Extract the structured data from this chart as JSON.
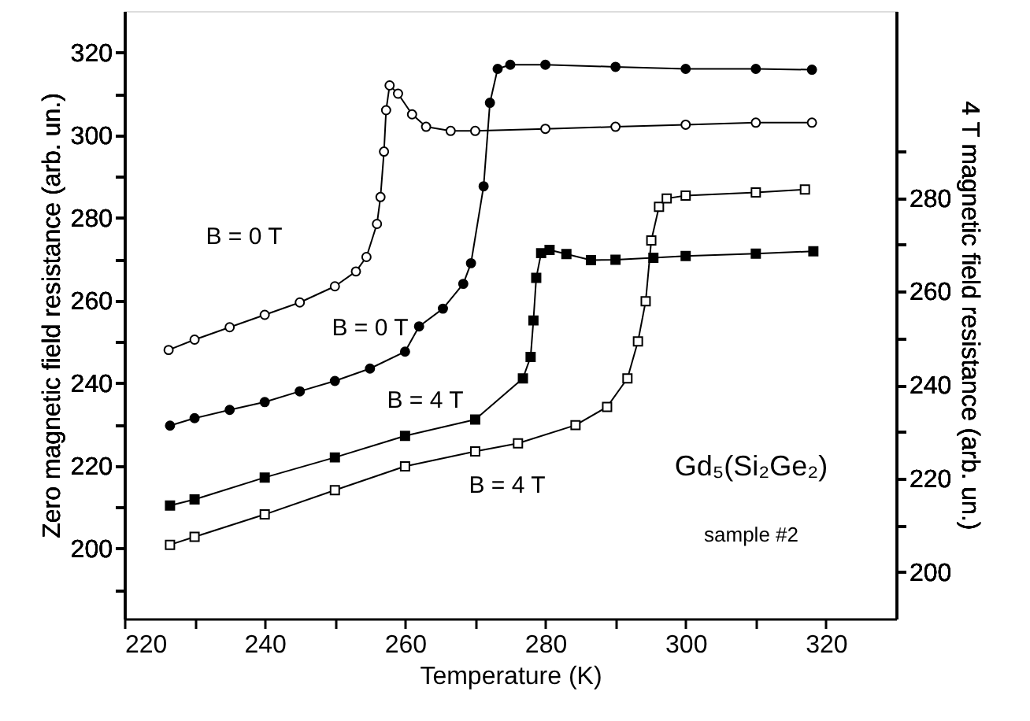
{
  "chart_data": {
    "type": "line",
    "xlabel": "Temperature (K)",
    "ylabel": "Zero magnetic field resistance (arb. un.)",
    "y2label": "4 T magnetic field resistance (arb. un.)",
    "xlim": [
      220,
      330
    ],
    "xticks": [
      220,
      {
        "value": 230,
        "label": null
      },
      240,
      {
        "value": 250,
        "label": null
      },
      260,
      {
        "value": 270,
        "label": null
      },
      280,
      {
        "value": 290,
        "label": null
      },
      300,
      {
        "value": 310,
        "label": null
      },
      320
    ],
    "ylim": [
      183,
      330
    ],
    "yticks": [
      {
        "value": 190,
        "label": null
      },
      200,
      {
        "value": 210,
        "label": null
      },
      220,
      {
        "value": 230,
        "label": null
      },
      240,
      {
        "value": 250,
        "label": null
      },
      260,
      {
        "value": 270,
        "label": null
      },
      280,
      {
        "value": 290,
        "label": null
      },
      300,
      {
        "value": 310,
        "label": null
      },
      320
    ],
    "y2lim": [
      190,
      320
    ],
    "y2ticks": [
      200,
      {
        "value": 210,
        "label": null
      },
      220,
      {
        "value": 230,
        "label": null
      },
      240,
      {
        "value": 250,
        "label": null
      },
      260,
      {
        "value": 270,
        "label": null
      },
      280,
      {
        "value": 290,
        "label": null
      }
    ],
    "line_style": "solid",
    "series": [
      {
        "color": "#ffffff",
        "marker": "circle",
        "axis": "y",
        "x": [
          226.3,
          230,
          235,
          240,
          245,
          250,
          253,
          254.5,
          256,
          256.5,
          257,
          257.3,
          257.8,
          259,
          261,
          263,
          266.5,
          270,
          280,
          290,
          300,
          310,
          318
        ],
        "values": [
          248,
          250.5,
          253.5,
          256.5,
          259.5,
          263.4,
          267,
          270.5,
          278.5,
          285,
          296,
          306,
          312,
          310,
          305,
          302,
          301,
          301,
          301.5,
          302,
          302.5,
          303,
          303
        ]
      },
      {
        "color": "#000000",
        "marker": "circle",
        "axis": "y",
        "x": [
          226.5,
          230,
          235,
          240,
          245,
          250,
          255,
          260,
          262,
          265.4,
          268.3,
          269.4,
          271.2,
          272.1,
          273.2,
          275,
          280,
          290,
          300,
          310,
          318
        ],
        "values": [
          229.7,
          231.5,
          233.5,
          235.4,
          238,
          240.5,
          243.5,
          247.6,
          253.7,
          258,
          264,
          269,
          287.6,
          307.8,
          316,
          317,
          317,
          316.5,
          316,
          316,
          315.8
        ]
      },
      {
        "color": "#000000",
        "marker": "square",
        "axis": "y2",
        "x": [
          226.5,
          230,
          240,
          250,
          260,
          270,
          276.8,
          277.9,
          278.3,
          278.7,
          279.4,
          280.6,
          283,
          286.5,
          290,
          295.4,
          300,
          310,
          318.2
        ],
        "values": [
          214.2,
          215.5,
          220.2,
          224.5,
          229.1,
          232.6,
          241.4,
          246,
          253.8,
          262.9,
          268.2,
          268.9,
          268,
          266.7,
          266.8,
          267.2,
          267.6,
          268.1,
          268.6
        ]
      },
      {
        "color": "#ffffff",
        "marker": "square",
        "axis": "y2",
        "x": [
          226.5,
          230,
          240,
          250,
          260,
          270,
          276.1,
          284.3,
          288.8,
          291.7,
          293.2,
          294.3,
          295.1,
          296.2,
          297.3,
          300,
          310,
          317
        ],
        "values": [
          205.8,
          207.5,
          212.3,
          217.5,
          222.6,
          225.8,
          227.5,
          231.4,
          235.3,
          241.4,
          249.3,
          257.9,
          270.9,
          278.1,
          279.9,
          280.5,
          281.2,
          281.8
        ]
      }
    ],
    "annotations": [
      "B = 0 T",
      "B = 0 T",
      "B = 4 T",
      "B = 4 T",
      "Gd₅(Si₂Ge₂)",
      "sample #2"
    ]
  }
}
